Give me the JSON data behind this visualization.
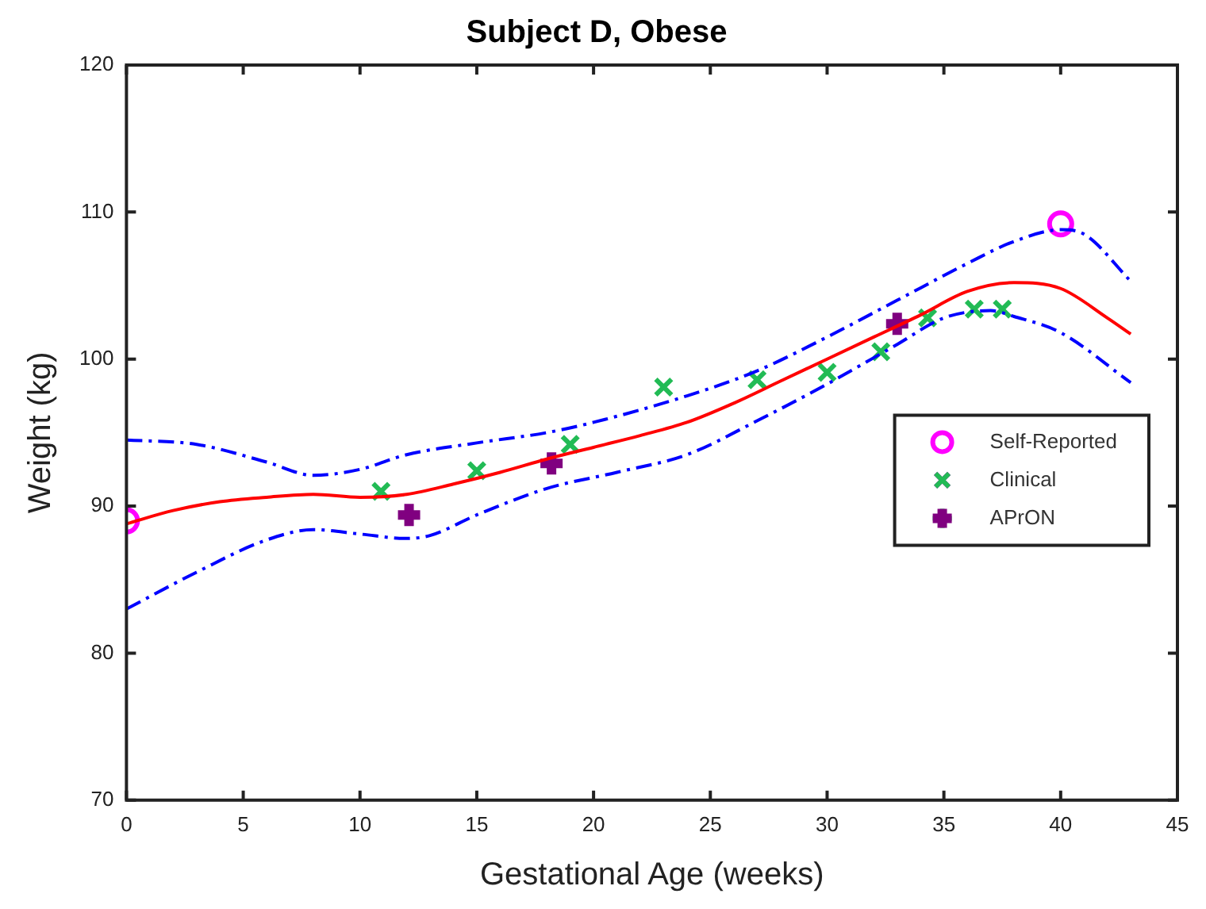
{
  "chart_data": {
    "type": "scatter",
    "title": "Subject D, Obese",
    "xlabel": "Gestational Age (weeks)",
    "ylabel": "Weight (kg)",
    "xlim": [
      0,
      45
    ],
    "xticks": [
      0,
      5,
      10,
      15,
      20,
      25,
      30,
      35,
      40,
      45
    ],
    "ylim": [
      70,
      120
    ],
    "yticks": [
      70,
      80,
      90,
      100,
      110,
      120
    ],
    "grid": false,
    "legend": "right",
    "series": [
      {
        "type": "line",
        "color": "#ff0000",
        "line_style": "solid",
        "marker": "none",
        "x": [
          0,
          2,
          4,
          6,
          8,
          10,
          12,
          14,
          16,
          18,
          20,
          22,
          24,
          26,
          28,
          30,
          32,
          34,
          36,
          38,
          40,
          42,
          43
        ],
        "values": [
          88.8,
          89.7,
          90.3,
          90.6,
          90.8,
          90.6,
          90.8,
          91.5,
          92.3,
          93.2,
          94,
          94.8,
          95.7,
          97,
          98.5,
          100,
          101.5,
          103,
          104.6,
          105.2,
          104.8,
          102.8,
          101.7
        ]
      },
      {
        "type": "line",
        "color": "#0000ff",
        "line_style": "dashed",
        "marker": "none",
        "x": [
          0,
          3,
          6,
          8,
          10,
          12,
          15,
          18,
          20,
          24,
          27,
          30,
          33,
          36,
          38,
          40,
          41,
          43
        ],
        "values": [
          94.5,
          94.2,
          93,
          92.1,
          92.5,
          93.5,
          94.3,
          95,
          95.7,
          97.5,
          99.2,
          101.5,
          104,
          106.5,
          108,
          108.8,
          108.5,
          105.3
        ]
      },
      {
        "type": "line",
        "color": "#0000ff",
        "line_style": "dashed",
        "marker": "none",
        "x": [
          0,
          3,
          6,
          8,
          10,
          12,
          13,
          15,
          18,
          21,
          24,
          27,
          30,
          33,
          35,
          37,
          38,
          40,
          43
        ],
        "values": [
          83,
          85.5,
          87.7,
          88.4,
          88.1,
          87.8,
          88,
          89.4,
          91.2,
          92.3,
          93.5,
          95.8,
          98.3,
          101,
          102.8,
          103.3,
          102.9,
          101.8,
          98.4
        ]
      },
      {
        "name": "Self-Reported",
        "type": "scatter",
        "color": "#ff00ff",
        "marker": "circle",
        "x": [
          0,
          40
        ],
        "values": [
          89,
          109.2
        ]
      },
      {
        "name": "Clinical",
        "type": "scatter",
        "color": "#22bb55",
        "marker": "cross",
        "x": [
          10.9,
          15,
          19,
          23,
          27,
          30,
          32.3,
          34.3,
          36.3,
          37.5
        ],
        "values": [
          91,
          92.4,
          94.2,
          98.1,
          98.6,
          99.1,
          100.5,
          102.8,
          103.4,
          103.4
        ]
      },
      {
        "name": "APrON",
        "type": "scatter",
        "color": "#800080",
        "marker": "plus",
        "x": [
          12.1,
          18.2,
          33
        ],
        "values": [
          89.4,
          92.9,
          102.4
        ]
      }
    ]
  }
}
